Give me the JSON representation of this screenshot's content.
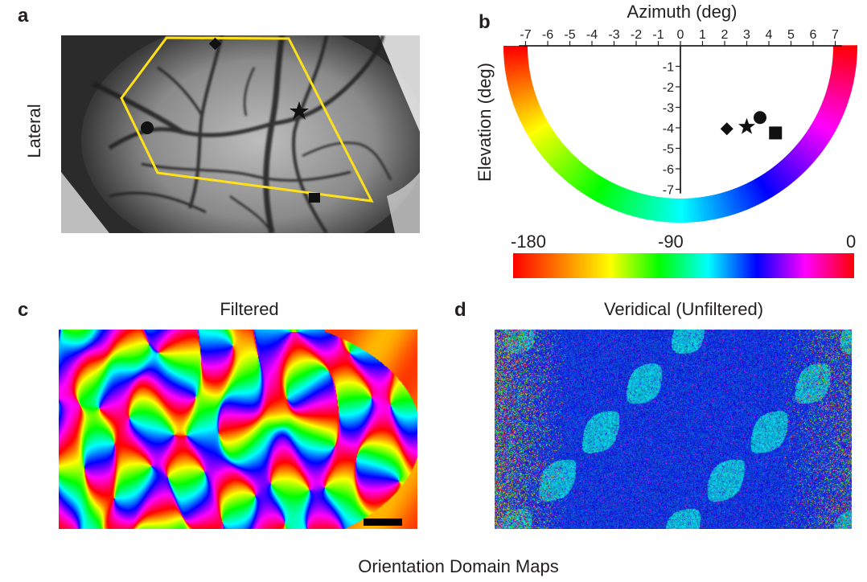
{
  "panel_a": {
    "letter": "a",
    "side_label": "Lateral",
    "polygon_color": "#ffe11a",
    "markers": [
      "diamond-marker",
      "circle-marker",
      "star-marker",
      "square-marker"
    ]
  },
  "panel_b": {
    "letter": "b",
    "title": "Azimuth (deg)",
    "ylabel": "Elevation (deg)",
    "x_ticks": [
      "-7",
      "-6",
      "-5",
      "-4",
      "-3",
      "-2",
      "-1",
      "0",
      "1",
      "2",
      "3",
      "4",
      "5",
      "6",
      "7"
    ],
    "y_ticks": [
      "-1",
      "-2",
      "-3",
      "-4",
      "-5",
      "-6",
      "-7"
    ],
    "points": [
      {
        "shape": "diamond",
        "azimuth": 2.1,
        "elevation": -4.05
      },
      {
        "shape": "star",
        "azimuth": 3.0,
        "elevation": -3.95
      },
      {
        "shape": "circle",
        "azimuth": 3.6,
        "elevation": -3.5
      },
      {
        "shape": "square",
        "azimuth": 4.3,
        "elevation": -4.25
      }
    ],
    "colorbar": {
      "labels": [
        "-180",
        "-90",
        "0"
      ],
      "stops": [
        "#ff0000",
        "#ff8000",
        "#ffff00",
        "#00ff00",
        "#00ffff",
        "#0000ff",
        "#ff00ff",
        "#ff0000"
      ]
    }
  },
  "panel_c": {
    "letter": "c",
    "title": "Filtered"
  },
  "panel_d": {
    "letter": "d",
    "title": "Veridical (Unfiltered)"
  },
  "caption": "Orientation Domain Maps"
}
